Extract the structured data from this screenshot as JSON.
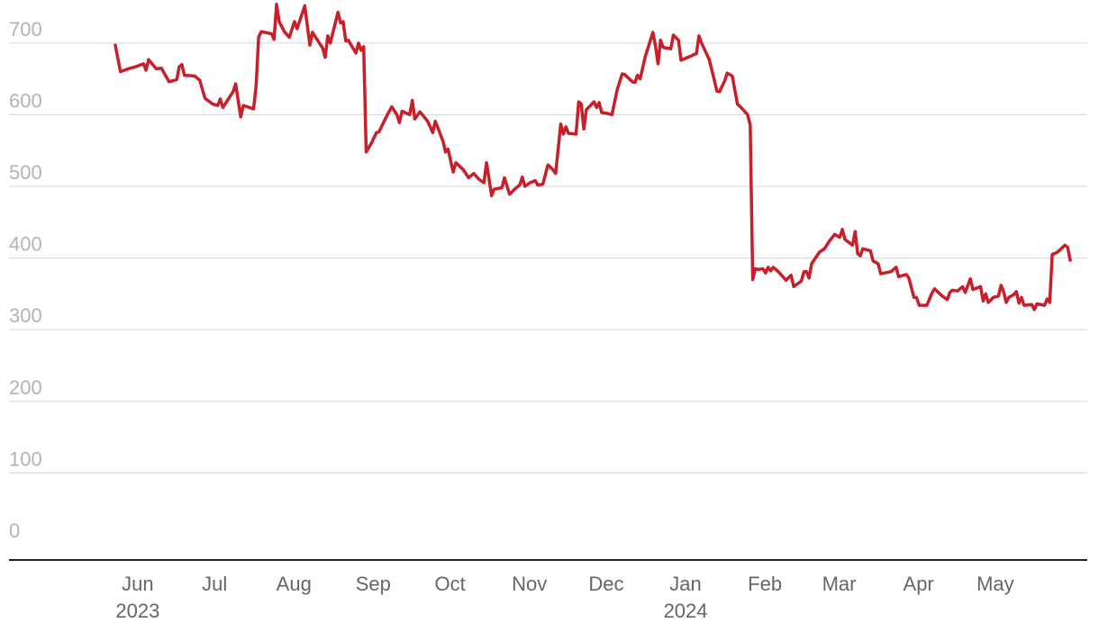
{
  "chart_data": {
    "type": "line",
    "title": "",
    "xlabel": "",
    "ylabel": "",
    "ylim": [
      0,
      720
    ],
    "yticks": [
      0,
      100,
      200,
      300,
      400,
      500,
      600,
      700
    ],
    "grid": true,
    "x_axis": {
      "ticks": [
        {
          "date": "2023-06-01",
          "label": "Jun",
          "year": "2023"
        },
        {
          "date": "2023-07-01",
          "label": "Jul",
          "year": ""
        },
        {
          "date": "2023-08-01",
          "label": "Aug",
          "year": ""
        },
        {
          "date": "2023-09-01",
          "label": "Sep",
          "year": ""
        },
        {
          "date": "2023-10-01",
          "label": "Oct",
          "year": ""
        },
        {
          "date": "2023-11-01",
          "label": "Nov",
          "year": ""
        },
        {
          "date": "2023-12-01",
          "label": "Dec",
          "year": ""
        },
        {
          "date": "2024-01-01",
          "label": "Jan",
          "year": "2024"
        },
        {
          "date": "2024-02-01",
          "label": "Feb",
          "year": ""
        },
        {
          "date": "2024-03-01",
          "label": "Mar",
          "year": ""
        },
        {
          "date": "2024-04-01",
          "label": "Apr",
          "year": ""
        },
        {
          "date": "2024-05-01",
          "label": "May",
          "year": ""
        }
      ],
      "range": [
        "2023-05-19",
        "2024-06-01"
      ]
    },
    "series": [
      {
        "color": "#c8202a",
        "points": [
          [
            "2023-05-25",
            697
          ],
          [
            "2023-05-27",
            660
          ],
          [
            "2023-05-30",
            664
          ],
          [
            "2023-06-02",
            667
          ],
          [
            "2023-06-05",
            671
          ],
          [
            "2023-06-06",
            662
          ],
          [
            "2023-06-07",
            677
          ],
          [
            "2023-06-10",
            664
          ],
          [
            "2023-06-12",
            665
          ],
          [
            "2023-06-15",
            646
          ],
          [
            "2023-06-18",
            649
          ],
          [
            "2023-06-19",
            667
          ],
          [
            "2023-06-20",
            670
          ],
          [
            "2023-06-21",
            655
          ],
          [
            "2023-06-25",
            654
          ],
          [
            "2023-06-27",
            648
          ],
          [
            "2023-06-29",
            623
          ],
          [
            "2023-07-02",
            615
          ],
          [
            "2023-07-04",
            613
          ],
          [
            "2023-07-05",
            622
          ],
          [
            "2023-07-06",
            610
          ],
          [
            "2023-07-10",
            632
          ],
          [
            "2023-07-11",
            643
          ],
          [
            "2023-07-13",
            597
          ],
          [
            "2023-07-14",
            613
          ],
          [
            "2023-07-18",
            608
          ],
          [
            "2023-07-19",
            640
          ],
          [
            "2023-07-20",
            708
          ],
          [
            "2023-07-21",
            716
          ],
          [
            "2023-07-25",
            713
          ],
          [
            "2023-07-26",
            705
          ],
          [
            "2023-07-27",
            754
          ],
          [
            "2023-07-28",
            730
          ],
          [
            "2023-07-30",
            716
          ],
          [
            "2023-08-01",
            708
          ],
          [
            "2023-08-03",
            730
          ],
          [
            "2023-08-04",
            720
          ],
          [
            "2023-08-07",
            752
          ],
          [
            "2023-08-09",
            697
          ],
          [
            "2023-08-10",
            715
          ],
          [
            "2023-08-14",
            693
          ],
          [
            "2023-08-15",
            680
          ],
          [
            "2023-08-16",
            710
          ],
          [
            "2023-08-17",
            700
          ],
          [
            "2023-08-20",
            743
          ],
          [
            "2023-08-21",
            728
          ],
          [
            "2023-08-22",
            730
          ],
          [
            "2023-08-23",
            703
          ],
          [
            "2023-08-24",
            704
          ],
          [
            "2023-08-27",
            686
          ],
          [
            "2023-08-28",
            700
          ],
          [
            "2023-08-29",
            690
          ],
          [
            "2023-08-30",
            695
          ],
          [
            "2023-08-31",
            548
          ],
          [
            "2023-09-02",
            560
          ],
          [
            "2023-09-04",
            575
          ],
          [
            "2023-09-05",
            576
          ],
          [
            "2023-09-08",
            598
          ],
          [
            "2023-09-10",
            611
          ],
          [
            "2023-09-12",
            600
          ],
          [
            "2023-09-13",
            589
          ],
          [
            "2023-09-14",
            605
          ],
          [
            "2023-09-17",
            600
          ],
          [
            "2023-09-18",
            620
          ],
          [
            "2023-09-19",
            594
          ],
          [
            "2023-09-21",
            604
          ],
          [
            "2023-09-24",
            591
          ],
          [
            "2023-09-26",
            575
          ],
          [
            "2023-09-27",
            591
          ],
          [
            "2023-09-30",
            563
          ],
          [
            "2023-10-01",
            548
          ],
          [
            "2023-10-02",
            552
          ],
          [
            "2023-10-04",
            520
          ],
          [
            "2023-10-05",
            533
          ],
          [
            "2023-10-08",
            523
          ],
          [
            "2023-10-10",
            512
          ],
          [
            "2023-10-12",
            518
          ],
          [
            "2023-10-14",
            510
          ],
          [
            "2023-10-16",
            505
          ],
          [
            "2023-10-17",
            533
          ],
          [
            "2023-10-19",
            487
          ],
          [
            "2023-10-20",
            496
          ],
          [
            "2023-10-23",
            498
          ],
          [
            "2023-10-24",
            512
          ],
          [
            "2023-10-26",
            489
          ],
          [
            "2023-10-28",
            496
          ],
          [
            "2023-10-30",
            502
          ],
          [
            "2023-10-31",
            513
          ],
          [
            "2023-11-01",
            500
          ],
          [
            "2023-11-03",
            505
          ],
          [
            "2023-11-05",
            508
          ],
          [
            "2023-11-06",
            502
          ],
          [
            "2023-11-08",
            503
          ],
          [
            "2023-11-10",
            530
          ],
          [
            "2023-11-12",
            523
          ],
          [
            "2023-11-13",
            518
          ],
          [
            "2023-11-15",
            587
          ],
          [
            "2023-11-16",
            573
          ],
          [
            "2023-11-17",
            583
          ],
          [
            "2023-11-18",
            574
          ],
          [
            "2023-11-21",
            573
          ],
          [
            "2023-11-22",
            618
          ],
          [
            "2023-11-23",
            615
          ],
          [
            "2023-11-24",
            580
          ],
          [
            "2023-11-25",
            607
          ],
          [
            "2023-11-28",
            618
          ],
          [
            "2023-11-29",
            610
          ],
          [
            "2023-11-30",
            617
          ],
          [
            "2023-12-01",
            603
          ],
          [
            "2023-12-03",
            602
          ],
          [
            "2023-12-05",
            600
          ],
          [
            "2023-12-07",
            634
          ],
          [
            "2023-12-09",
            657
          ],
          [
            "2023-12-10",
            656
          ],
          [
            "2023-12-13",
            646
          ],
          [
            "2023-12-14",
            645
          ],
          [
            "2023-12-15",
            655
          ],
          [
            "2023-12-16",
            650
          ],
          [
            "2023-12-18",
            681
          ],
          [
            "2023-12-21",
            715
          ],
          [
            "2023-12-22",
            696
          ],
          [
            "2023-12-23",
            671
          ],
          [
            "2023-12-24",
            704
          ],
          [
            "2023-12-25",
            694
          ],
          [
            "2023-12-28",
            692
          ],
          [
            "2023-12-29",
            711
          ],
          [
            "2023-12-31",
            704
          ],
          [
            "2024-01-01",
            676
          ],
          [
            "2024-01-05",
            682
          ],
          [
            "2024-01-06",
            684
          ],
          [
            "2024-01-07",
            685
          ],
          [
            "2024-01-08",
            710
          ],
          [
            "2024-01-09",
            700
          ],
          [
            "2024-01-12",
            677
          ],
          [
            "2024-01-14",
            648
          ],
          [
            "2024-01-15",
            633
          ],
          [
            "2024-01-16",
            632
          ],
          [
            "2024-01-18",
            647
          ],
          [
            "2024-01-19",
            658
          ],
          [
            "2024-01-21",
            654
          ],
          [
            "2024-01-23",
            615
          ],
          [
            "2024-01-25",
            608
          ],
          [
            "2024-01-27",
            600
          ],
          [
            "2024-01-28",
            586
          ],
          [
            "2024-01-29",
            370
          ],
          [
            "2024-01-30",
            385
          ],
          [
            "2024-01-31",
            384
          ],
          [
            "2024-02-02",
            385
          ],
          [
            "2024-02-03",
            379
          ],
          [
            "2024-02-04",
            387
          ],
          [
            "2024-02-05",
            382
          ],
          [
            "2024-02-06",
            387
          ],
          [
            "2024-02-08",
            381
          ],
          [
            "2024-02-10",
            373
          ],
          [
            "2024-02-11",
            369
          ],
          [
            "2024-02-13",
            376
          ],
          [
            "2024-02-14",
            360
          ],
          [
            "2024-02-17",
            368
          ],
          [
            "2024-02-18",
            381
          ],
          [
            "2024-02-19",
            381
          ],
          [
            "2024-02-20",
            372
          ],
          [
            "2024-02-21",
            392
          ],
          [
            "2024-02-24",
            408
          ],
          [
            "2024-02-26",
            413
          ],
          [
            "2024-02-28",
            424
          ],
          [
            "2024-03-01",
            433
          ],
          [
            "2024-03-03",
            429
          ],
          [
            "2024-03-04",
            440
          ],
          [
            "2024-03-05",
            426
          ],
          [
            "2024-03-08",
            418
          ],
          [
            "2024-03-09",
            437
          ],
          [
            "2024-03-10",
            406
          ],
          [
            "2024-03-11",
            403
          ],
          [
            "2024-03-12",
            413
          ],
          [
            "2024-03-15",
            410
          ],
          [
            "2024-03-16",
            396
          ],
          [
            "2024-03-18",
            392
          ],
          [
            "2024-03-19",
            378
          ],
          [
            "2024-03-23",
            381
          ],
          [
            "2024-03-25",
            387
          ],
          [
            "2024-03-26",
            374
          ],
          [
            "2024-03-29",
            377
          ],
          [
            "2024-03-30",
            372
          ],
          [
            "2024-03-31",
            358
          ],
          [
            "2024-04-01",
            345
          ],
          [
            "2024-04-02",
            345
          ],
          [
            "2024-04-03",
            334
          ],
          [
            "2024-04-06",
            334
          ],
          [
            "2024-04-08",
            351
          ],
          [
            "2024-04-09",
            357
          ],
          [
            "2024-04-12",
            347
          ],
          [
            "2024-04-14",
            342
          ],
          [
            "2024-04-15",
            352
          ],
          [
            "2024-04-16",
            355
          ],
          [
            "2024-04-18",
            354
          ],
          [
            "2024-04-20",
            360
          ],
          [
            "2024-04-21",
            352
          ],
          [
            "2024-04-23",
            371
          ],
          [
            "2024-04-24",
            356
          ],
          [
            "2024-04-27",
            360
          ],
          [
            "2024-04-28",
            340
          ],
          [
            "2024-04-29",
            350
          ],
          [
            "2024-04-30",
            338
          ],
          [
            "2024-05-02",
            345
          ],
          [
            "2024-05-04",
            347
          ],
          [
            "2024-05-05",
            362
          ],
          [
            "2024-05-06",
            353
          ],
          [
            "2024-05-07",
            338
          ],
          [
            "2024-05-08",
            345
          ],
          [
            "2024-05-10",
            349
          ],
          [
            "2024-05-11",
            353
          ],
          [
            "2024-05-12",
            337
          ],
          [
            "2024-05-13",
            345
          ],
          [
            "2024-05-14",
            334
          ],
          [
            "2024-05-17",
            335
          ],
          [
            "2024-05-18",
            328
          ],
          [
            "2024-05-19",
            336
          ],
          [
            "2024-05-22",
            334
          ],
          [
            "2024-05-23",
            343
          ],
          [
            "2024-05-24",
            338
          ],
          [
            "2024-05-25",
            405
          ],
          [
            "2024-05-27",
            408
          ],
          [
            "2024-05-30",
            418
          ],
          [
            "2024-05-31",
            415
          ],
          [
            "2024-06-01",
            397
          ]
        ]
      }
    ]
  }
}
